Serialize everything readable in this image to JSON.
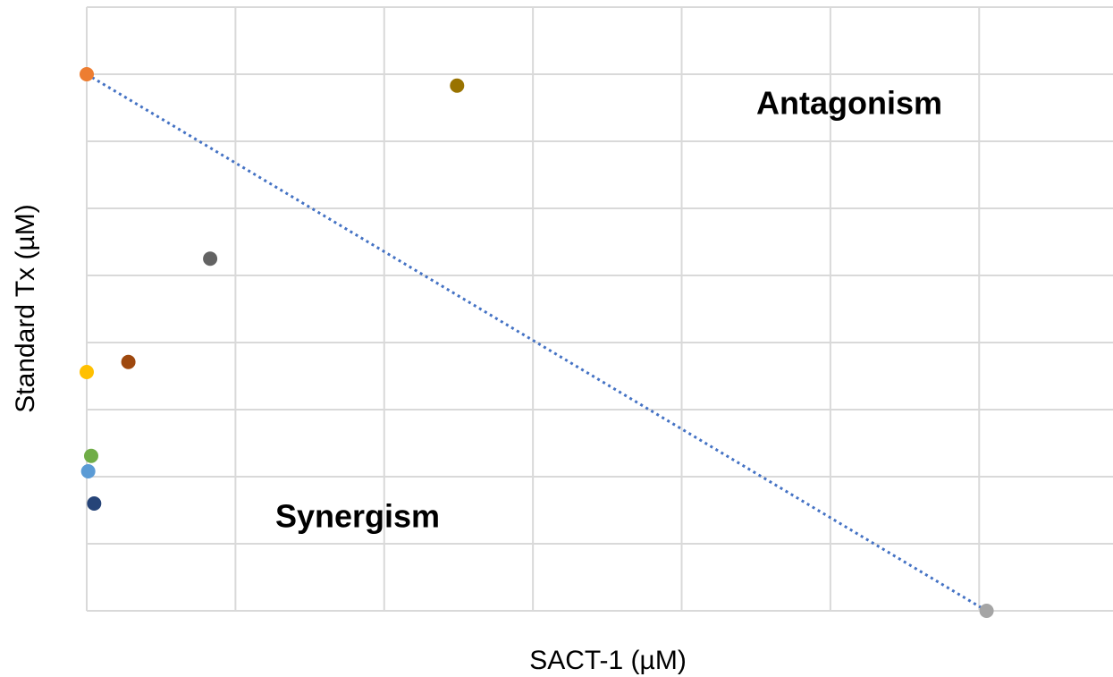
{
  "chart_data": {
    "type": "scatter",
    "x_label": "SACT-1 (µM)",
    "y_label": "Standard Tx (µM)",
    "annotations": [
      "Antagonism",
      "Synergism"
    ],
    "xlim": [
      0,
      6.9
    ],
    "ylim": [
      0,
      9
    ],
    "xticks": [
      0,
      1,
      2,
      3,
      4,
      5,
      6
    ],
    "yticks": [
      0,
      1,
      2,
      3,
      4,
      5,
      6,
      7,
      8,
      9
    ],
    "grid": true,
    "points": [
      {
        "x": 0,
        "y": 8.0,
        "color": "#ed7d31"
      },
      {
        "x": 2.49,
        "y": 7.83,
        "color": "#997300"
      },
      {
        "x": 0.83,
        "y": 5.25,
        "color": "#636363"
      },
      {
        "x": 0.28,
        "y": 3.71,
        "color": "#9e480e"
      },
      {
        "x": 0,
        "y": 3.56,
        "color": "#ffc000"
      },
      {
        "x": 0.03,
        "y": 2.31,
        "color": "#70ad47"
      },
      {
        "x": 0.01,
        "y": 2.08,
        "color": "#5b9bd5"
      },
      {
        "x": 0.05,
        "y": 1.6,
        "color": "#264478"
      },
      {
        "x": 6.05,
        "y": 0,
        "color": "#a5a5a5"
      }
    ],
    "line": {
      "x": [
        0,
        6.05
      ],
      "y": [
        8.0,
        0
      ],
      "color": "#4472c4",
      "style": "dotted"
    }
  }
}
